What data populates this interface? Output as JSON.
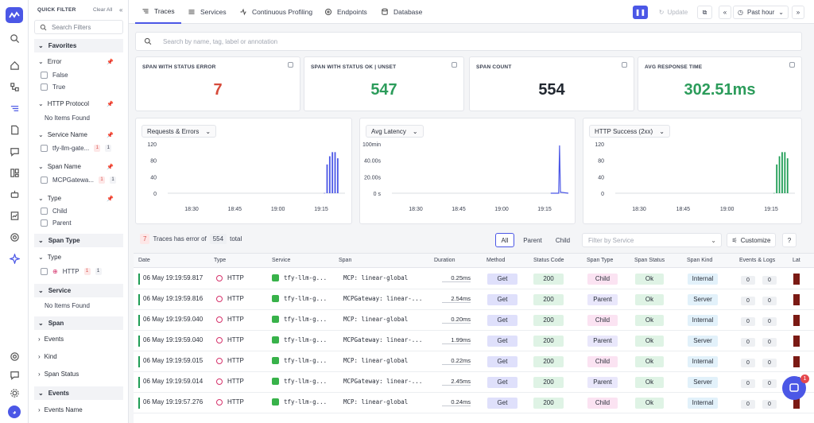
{
  "filters": {
    "title": "QUICK FILTER",
    "clear_all": "Clear All",
    "search_placeholder": "Search Filters",
    "favorites": "Favorites",
    "error_label": "Error",
    "opt_false": "False",
    "opt_true": "True",
    "http_protocol": "HTTP Protocol",
    "no_items": "No Items Found",
    "service_name": "Service Name",
    "service_value": "tfy-llm-gate...",
    "service_red": "1",
    "service_count": "1",
    "span_name": "Span Name",
    "span_value": "MCPGatewa...",
    "span_red": "1",
    "span_count": "1",
    "type_label": "Type",
    "opt_child": "Child",
    "opt_parent": "Parent",
    "span_type_section": "Span Type",
    "type_sub": "Type",
    "http_value": "HTTP",
    "http_red": "1",
    "http_count": "1",
    "service_section": "Service",
    "span_section": "Span",
    "span_events": "Events",
    "span_kind": "Kind",
    "span_status": "Span Status",
    "events_section": "Events",
    "events_name": "Events Name"
  },
  "topbar": {
    "tabs": [
      "Traces",
      "Services",
      "Continuous Profiling",
      "Endpoints",
      "Database"
    ],
    "update": "Update",
    "time_range": "Past hour"
  },
  "search": {
    "placeholder": "Search by name, tag, label or annotation"
  },
  "kpis": [
    {
      "label": "SPAN WITH STATUS ERROR",
      "value": "7",
      "color": "#d64b3b"
    },
    {
      "label": "SPAN WITH STATUS OK | UNSET",
      "value": "547",
      "color": "#2c9c5b"
    },
    {
      "label": "SPAN COUNT",
      "value": "554",
      "color": "#222831"
    },
    {
      "label": "AVG RESPONSE TIME",
      "value": "302.51ms",
      "color": "#2c9c5b"
    }
  ],
  "chart_data": [
    {
      "type": "bar",
      "title": "Requests & Errors",
      "y_ticks": [
        "120",
        "80",
        "40",
        "0"
      ],
      "x_ticks": [
        "18:30",
        "18:45",
        "19:00",
        "19:15"
      ],
      "ylim": [
        0,
        120
      ],
      "color": "#4b57e6",
      "bars": [
        {
          "t": 0.88,
          "v": 0.5
        },
        {
          "t": 0.895,
          "v": 70
        },
        {
          "t": 0.91,
          "v": 90
        },
        {
          "t": 0.925,
          "v": 100
        },
        {
          "t": 0.94,
          "v": 100
        },
        {
          "t": 0.955,
          "v": 85
        }
      ]
    },
    {
      "type": "line",
      "title": "Avg Latency",
      "y_ticks": [
        "100min",
        "40.00s",
        "20.00s",
        "0 s"
      ],
      "x_ticks": [
        "18:30",
        "18:45",
        "19:00",
        "19:15"
      ],
      "color": "#4b57e6",
      "points": [
        {
          "t": 0.9,
          "v": 0
        },
        {
          "t": 0.945,
          "v": 0
        },
        {
          "t": 0.95,
          "v": 0.97
        },
        {
          "t": 0.955,
          "v": 0.02
        },
        {
          "t": 1.0,
          "v": 0
        }
      ]
    },
    {
      "type": "bar",
      "title": "HTTP Success (2xx)",
      "y_ticks": [
        "120",
        "80",
        "40",
        "0"
      ],
      "x_ticks": [
        "18:30",
        "18:45",
        "19:00",
        "19:15"
      ],
      "ylim": [
        0,
        120
      ],
      "color": "#1f9d55",
      "bars": [
        {
          "t": 0.88,
          "v": 0.5
        },
        {
          "t": 0.895,
          "v": 70
        },
        {
          "t": 0.91,
          "v": 90
        },
        {
          "t": 0.925,
          "v": 100
        },
        {
          "t": 0.94,
          "v": 100
        },
        {
          "t": 0.955,
          "v": 85
        }
      ]
    }
  ],
  "summary": {
    "errors": "7",
    "text": "Traces has error of",
    "total": "554",
    "suffix": "total"
  },
  "segments": [
    "All",
    "Parent",
    "Child"
  ],
  "service_filter_placeholder": "Filter by Service",
  "customize": "Customize",
  "table": {
    "headers": [
      "Date",
      "Type",
      "Service",
      "Span",
      "Duration",
      "Method",
      "Status Code",
      "Span Type",
      "Span Status",
      "Span Kind",
      "Events & Logs",
      "Lat"
    ],
    "rows": [
      {
        "date": "06 May 19:19:59.817",
        "type": "HTTP",
        "service": "tfy-llm-g...",
        "span": "MCP: linear-global",
        "duration": "0.25ms",
        "method": "Get",
        "status": "200",
        "span_type": "Child",
        "span_status": "Ok",
        "span_kind": "Internal",
        "events": "0",
        "logs": "0"
      },
      {
        "date": "06 May 19:19:59.816",
        "type": "HTTP",
        "service": "tfy-llm-g...",
        "span": "MCPGateway: linear-...",
        "duration": "2.54ms",
        "method": "Get",
        "status": "200",
        "span_type": "Parent",
        "span_status": "Ok",
        "span_kind": "Server",
        "events": "0",
        "logs": "0"
      },
      {
        "date": "06 May 19:19:59.040",
        "type": "HTTP",
        "service": "tfy-llm-g...",
        "span": "MCP: linear-global",
        "duration": "0.20ms",
        "method": "Get",
        "status": "200",
        "span_type": "Child",
        "span_status": "Ok",
        "span_kind": "Internal",
        "events": "0",
        "logs": "0"
      },
      {
        "date": "06 May 19:19:59.040",
        "type": "HTTP",
        "service": "tfy-llm-g...",
        "span": "MCPGateway: linear-...",
        "duration": "1.99ms",
        "method": "Get",
        "status": "200",
        "span_type": "Parent",
        "span_status": "Ok",
        "span_kind": "Server",
        "events": "0",
        "logs": "0"
      },
      {
        "date": "06 May 19:19:59.015",
        "type": "HTTP",
        "service": "tfy-llm-g...",
        "span": "MCP: linear-global",
        "duration": "0.22ms",
        "method": "Get",
        "status": "200",
        "span_type": "Child",
        "span_status": "Ok",
        "span_kind": "Internal",
        "events": "0",
        "logs": "0"
      },
      {
        "date": "06 May 19:19:59.014",
        "type": "HTTP",
        "service": "tfy-llm-g...",
        "span": "MCPGateway: linear-...",
        "duration": "2.45ms",
        "method": "Get",
        "status": "200",
        "span_type": "Parent",
        "span_status": "Ok",
        "span_kind": "Server",
        "events": "0",
        "logs": "0"
      },
      {
        "date": "06 May 19:19:57.276",
        "type": "HTTP",
        "service": "tfy-llm-g...",
        "span": "MCP: linear-global",
        "duration": "0.24ms",
        "method": "Get",
        "status": "200",
        "span_type": "Child",
        "span_status": "Ok",
        "span_kind": "Internal",
        "events": "0",
        "logs": "0"
      }
    ]
  },
  "chat_badge": "1"
}
